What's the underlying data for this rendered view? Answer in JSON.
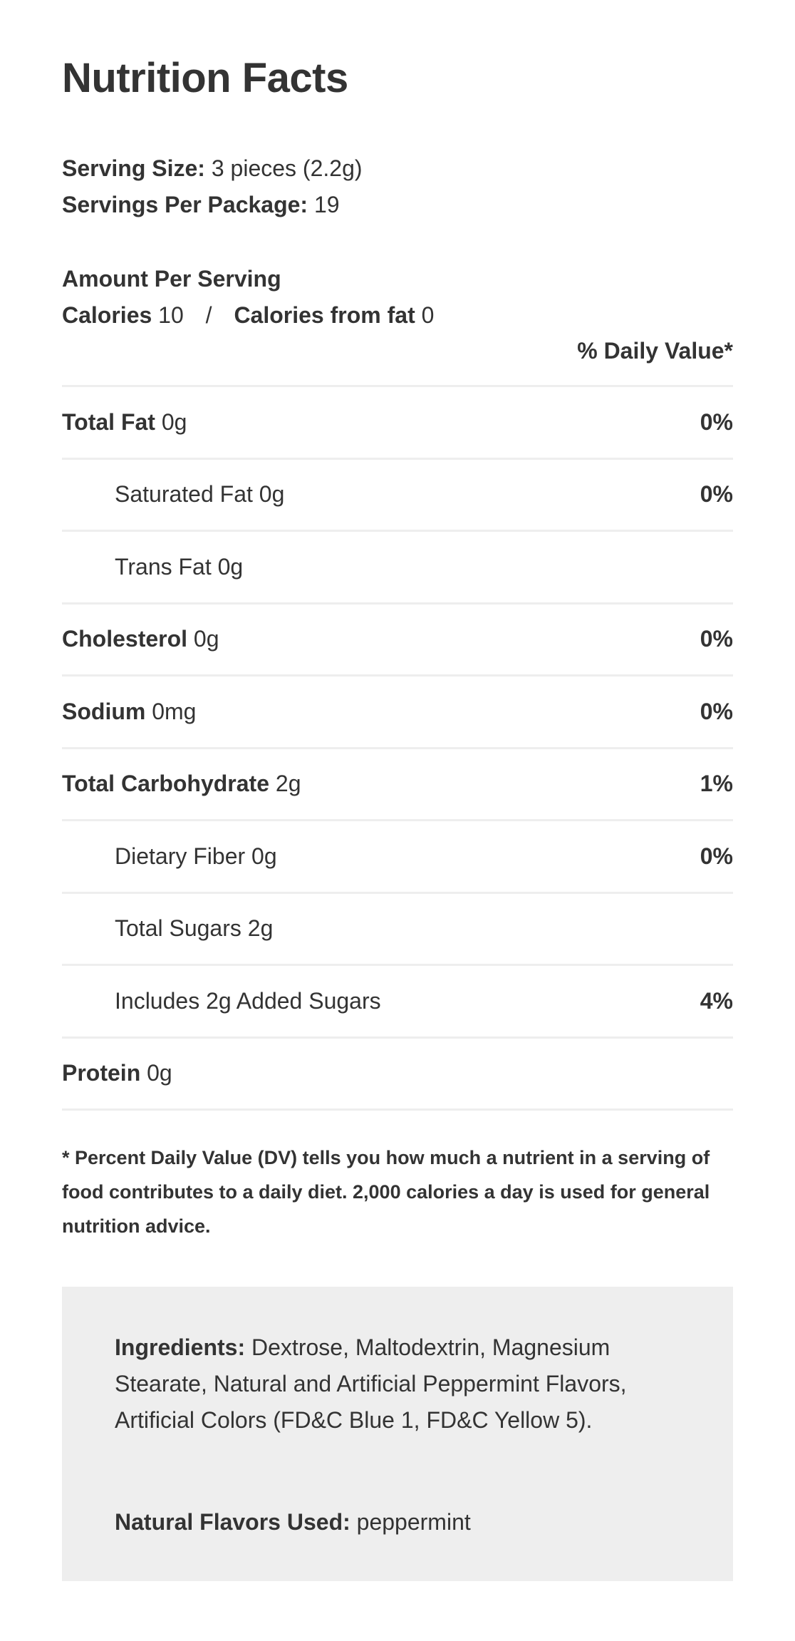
{
  "title": "Nutrition Facts",
  "serving_size": {
    "label": "Serving Size:",
    "value": "3 pieces (2.2g)"
  },
  "servings_per_package": {
    "label": "Servings Per Package:",
    "value": "19"
  },
  "amount_per_serving": "Amount Per Serving",
  "calories": {
    "label": "Calories",
    "value": "10",
    "separator": "/",
    "fat_label": "Calories from fat",
    "fat_value": "0"
  },
  "daily_value_header": "% Daily Value*",
  "nutrients": [
    {
      "name": "Total Fat",
      "amount": "0g",
      "dv": "0%",
      "indent": false
    },
    {
      "name": "Saturated Fat",
      "amount": "0g",
      "dv": "0%",
      "indent": true
    },
    {
      "name": "Trans Fat",
      "amount": "0g",
      "dv": "",
      "indent": true
    },
    {
      "name": "Cholesterol",
      "amount": "0g",
      "dv": "0%",
      "indent": false
    },
    {
      "name": "Sodium",
      "amount": "0mg",
      "dv": "0%",
      "indent": false
    },
    {
      "name": "Total Carbohydrate",
      "amount": "2g",
      "dv": "1%",
      "indent": false
    },
    {
      "name": "Dietary Fiber",
      "amount": "0g",
      "dv": "0%",
      "indent": true
    },
    {
      "name": "Total Sugars",
      "amount": "2g",
      "dv": "",
      "indent": true
    },
    {
      "name": "Includes 2g Added Sugars",
      "amount": "",
      "dv": "4%",
      "indent": true
    },
    {
      "name": "Protein",
      "amount": "0g",
      "dv": "",
      "indent": false
    }
  ],
  "footnote": "* Percent Daily Value (DV) tells you how much a nutrient in a serving of food contributes to a daily diet. 2,000 calories a day is used for general nutrition advice.",
  "ingredients": {
    "label": "Ingredients:",
    "value": "Dextrose, Maltodextrin, Magnesium Stearate, Natural and Artificial Peppermint Flavors, Artificial Colors (FD&C Blue 1, FD&C Yellow 5)."
  },
  "natural_flavors": {
    "label": "Natural Flavors Used:",
    "value": "peppermint"
  },
  "colors": {
    "text": "#333333",
    "divider": "#eeeeee",
    "ingredients_bg": "#eeeeee"
  }
}
